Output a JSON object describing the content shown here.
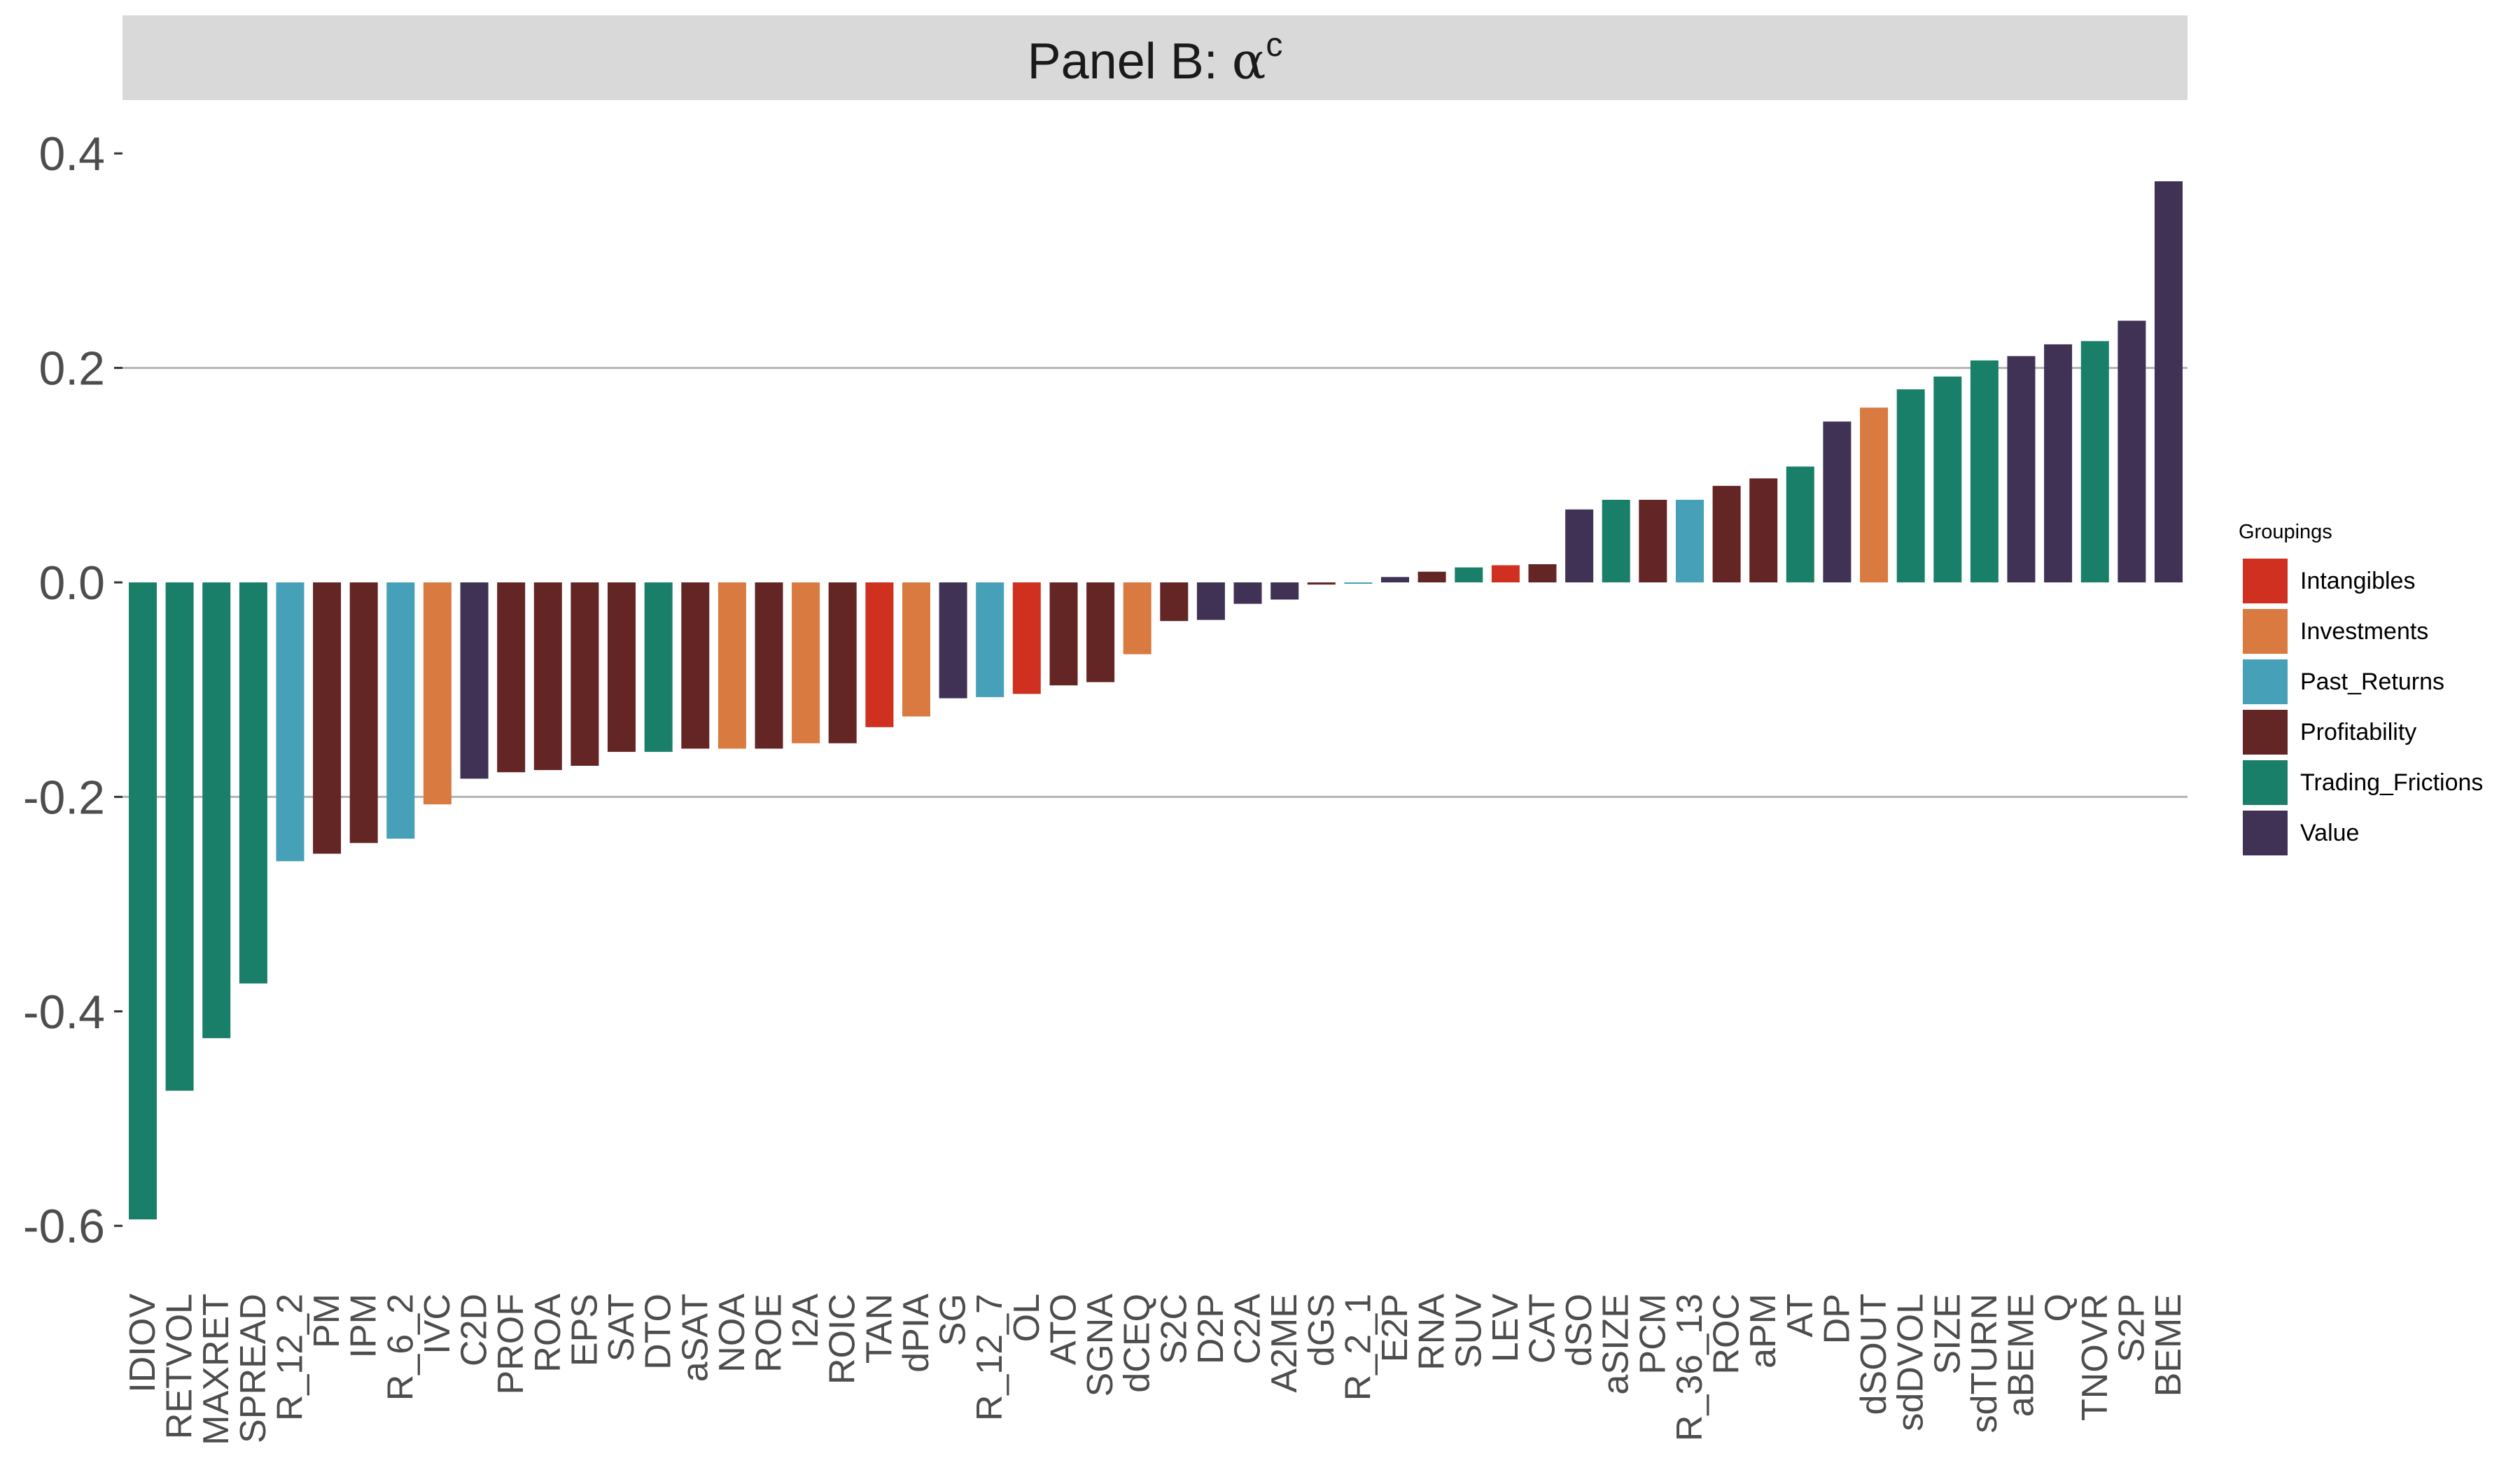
{
  "chart_data": {
    "type": "bar",
    "title": "Panel B: ",
    "title_symbol": "α",
    "title_superscript": "c",
    "xlabel": "",
    "ylabel": "",
    "ylim": [
      -0.66,
      0.43
    ],
    "yticks": [
      -0.6,
      -0.4,
      -0.2,
      0.0,
      0.2,
      0.4
    ],
    "ytick_labels": [
      "-0.6",
      "-0.4",
      "-0.2",
      "0.0",
      "0.2",
      "0.4"
    ],
    "gridlines": [
      -0.2,
      0.2
    ],
    "legend_title": "Groupings",
    "legend_position": "right",
    "groups": [
      {
        "name": "Intangibles",
        "color": "#d03020"
      },
      {
        "name": "Investments",
        "color": "#d97a40"
      },
      {
        "name": "Past_Returns",
        "color": "#45a0b8"
      },
      {
        "name": "Profitability",
        "color": "#642525"
      },
      {
        "name": "Trading_Frictions",
        "color": "#1a7f68"
      },
      {
        "name": "Value",
        "color": "#3f3254"
      }
    ],
    "categories": [
      "IDIOV",
      "RETVOL",
      "MAXRET",
      "SPREAD",
      "R_12_2",
      "PM",
      "IPM",
      "R_6_2",
      "IVC",
      "C2D",
      "PROF",
      "ROA",
      "EPS",
      "SAT",
      "DTO",
      "aSAT",
      "NOA",
      "ROE",
      "I2A",
      "ROIC",
      "TAN",
      "dPIA",
      "SG",
      "R_12_7",
      "OL",
      "ATO",
      "SGNA",
      "dCEQ",
      "S2C",
      "D2P",
      "C2A",
      "A2ME",
      "dGS",
      "R_2_1",
      "E2P",
      "RNA",
      "SUV",
      "LEV",
      "CAT",
      "dSO",
      "aSIZE",
      "PCM",
      "R_36_13",
      "ROC",
      "aPM",
      "AT",
      "DP",
      "dSOUT",
      "sdDVOL",
      "SIZE",
      "sdTURN",
      "aBEME",
      "Q",
      "TNOVR",
      "S2P",
      "BEME"
    ],
    "values": [
      -0.594,
      -0.474,
      -0.425,
      -0.374,
      -0.26,
      -0.253,
      -0.243,
      -0.239,
      -0.207,
      -0.183,
      -0.177,
      -0.175,
      -0.171,
      -0.158,
      -0.158,
      -0.155,
      -0.155,
      -0.155,
      -0.15,
      -0.15,
      -0.135,
      -0.125,
      -0.108,
      -0.107,
      -0.104,
      -0.096,
      -0.093,
      -0.067,
      -0.036,
      -0.035,
      -0.02,
      -0.016,
      -0.002,
      -0.001,
      0.005,
      0.01,
      0.014,
      0.016,
      0.017,
      0.068,
      0.077,
      0.077,
      0.077,
      0.09,
      0.097,
      0.108,
      0.15,
      0.163,
      0.18,
      0.192,
      0.207,
      0.211,
      0.222,
      0.225,
      0.244,
      0.374
    ],
    "bar_groups": [
      "Trading_Frictions",
      "Trading_Frictions",
      "Trading_Frictions",
      "Trading_Frictions",
      "Past_Returns",
      "Profitability",
      "Profitability",
      "Past_Returns",
      "Investments",
      "Value",
      "Profitability",
      "Profitability",
      "Profitability",
      "Profitability",
      "Trading_Frictions",
      "Profitability",
      "Investments",
      "Profitability",
      "Investments",
      "Profitability",
      "Intangibles",
      "Investments",
      "Value",
      "Past_Returns",
      "Intangibles",
      "Profitability",
      "Profitability",
      "Investments",
      "Profitability",
      "Value",
      "Value",
      "Value",
      "Profitability",
      "Past_Returns",
      "Value",
      "Profitability",
      "Trading_Frictions",
      "Intangibles",
      "Profitability",
      "Value",
      "Trading_Frictions",
      "Profitability",
      "Past_Returns",
      "Profitability",
      "Profitability",
      "Trading_Frictions",
      "Value",
      "Investments",
      "Trading_Frictions",
      "Trading_Frictions",
      "Trading_Frictions",
      "Value",
      "Value",
      "Trading_Frictions",
      "Value",
      "Value"
    ]
  }
}
